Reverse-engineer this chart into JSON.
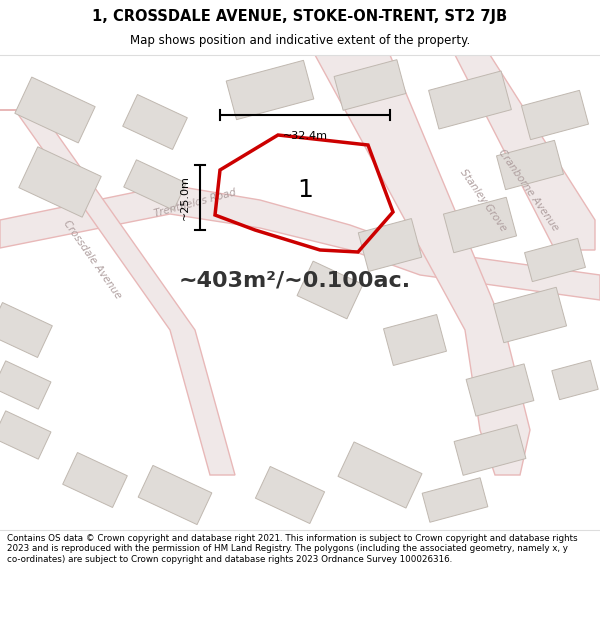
{
  "title_line1": "1, CROSSDALE AVENUE, STOKE-ON-TRENT, ST2 7JB",
  "title_line2": "Map shows position and indicative extent of the property.",
  "area_text": "~403m²/~0.100ac.",
  "label_number": "1",
  "dim_height": "~25.0m",
  "dim_width": "~32.4m",
  "footer_text": "Contains OS data © Crown copyright and database right 2021. This information is subject to Crown copyright and database rights 2023 and is reproduced with the permission of HM Land Registry. The polygons (including the associated geometry, namely x, y co-ordinates) are subject to Crown copyright and database rights 2023 Ordnance Survey 100026316.",
  "map_bg": "#f5f3f1",
  "road_fill_color": "#f0e8e8",
  "road_edge_color": "#e8b8b8",
  "building_color": "#e0dcd8",
  "building_edge_color": "#c0b8b0",
  "property_edge": "#cc0000",
  "road_label_color": "#b0a0a0",
  "footer_bg": "#ffffff",
  "title_bg": "#ffffff",
  "separator_color": "#dddddd"
}
